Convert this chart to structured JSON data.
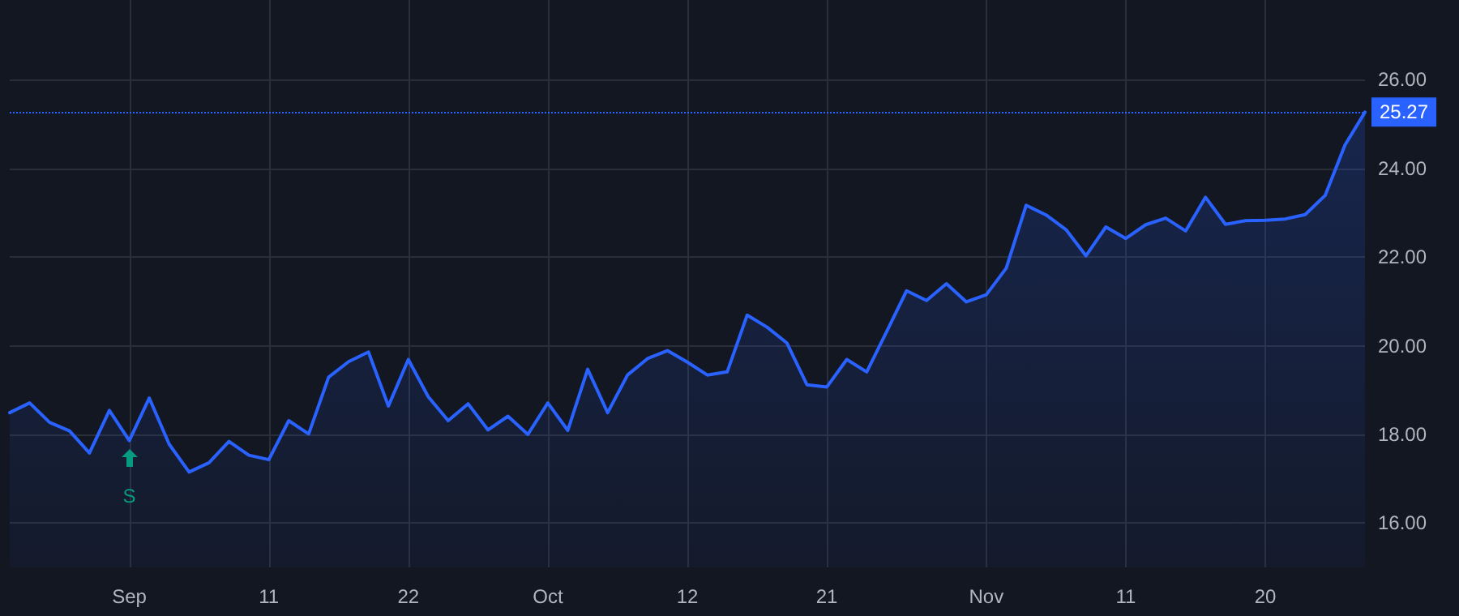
{
  "chart_data": {
    "type": "area",
    "categories": [
      null,
      null,
      null,
      null,
      null,
      null,
      "Sep",
      null,
      null,
      null,
      null,
      null,
      null,
      "11",
      null,
      null,
      null,
      null,
      null,
      null,
      "22",
      null,
      null,
      null,
      null,
      null,
      null,
      "Oct",
      null,
      null,
      null,
      null,
      null,
      null,
      "12",
      null,
      null,
      null,
      null,
      null,
      null,
      "21",
      null,
      null,
      null,
      null,
      null,
      null,
      null,
      "Nov",
      null,
      null,
      null,
      null,
      null,
      null,
      "11",
      null,
      null,
      null,
      null,
      null,
      null,
      "20",
      null,
      null,
      null,
      null,
      null
    ],
    "series": [
      {
        "color": "#2962ff",
        "values": [
          18.49,
          18.71,
          18.27,
          18.08,
          17.58,
          18.54,
          17.86,
          18.82,
          17.78,
          17.15,
          17.36,
          17.84,
          17.53,
          17.43,
          18.31,
          18.01,
          19.29,
          19.64,
          19.86,
          18.64,
          19.69,
          18.85,
          18.31,
          18.69,
          18.1,
          18.41,
          18.0,
          18.71,
          18.09,
          19.47,
          18.49,
          19.34,
          19.71,
          19.89,
          19.63,
          19.34,
          19.41,
          20.69,
          20.42,
          20.06,
          19.12,
          19.07,
          19.69,
          19.41,
          20.32,
          21.24,
          21.02,
          21.4,
          20.99,
          21.15,
          21.75,
          23.17,
          22.95,
          22.62,
          22.03,
          22.68,
          22.42,
          22.73,
          22.88,
          22.59,
          23.35,
          22.74,
          22.82,
          22.83,
          22.86,
          22.96,
          23.39,
          24.53,
          25.27
        ]
      }
    ],
    "ylim": [
      15.0,
      27.8
    ],
    "yticks": [
      {
        "value": 16,
        "label": "16.00"
      },
      {
        "value": 18,
        "label": "18.00"
      },
      {
        "value": 20,
        "label": "20.00"
      },
      {
        "value": 22,
        "label": "22.00"
      },
      {
        "value": 24,
        "label": "24.00"
      },
      {
        "value": 26,
        "label": "26.00"
      }
    ],
    "ref_lines": [
      {
        "axis": "y",
        "value": 25.27,
        "label": "25.27",
        "color": "#2962ff",
        "line_style": "dotted"
      }
    ],
    "annotations": [
      {
        "text": "S",
        "x": "Sep",
        "y": 17.86
      }
    ],
    "grid": true,
    "marker": "none",
    "line_style": "solid"
  }
}
